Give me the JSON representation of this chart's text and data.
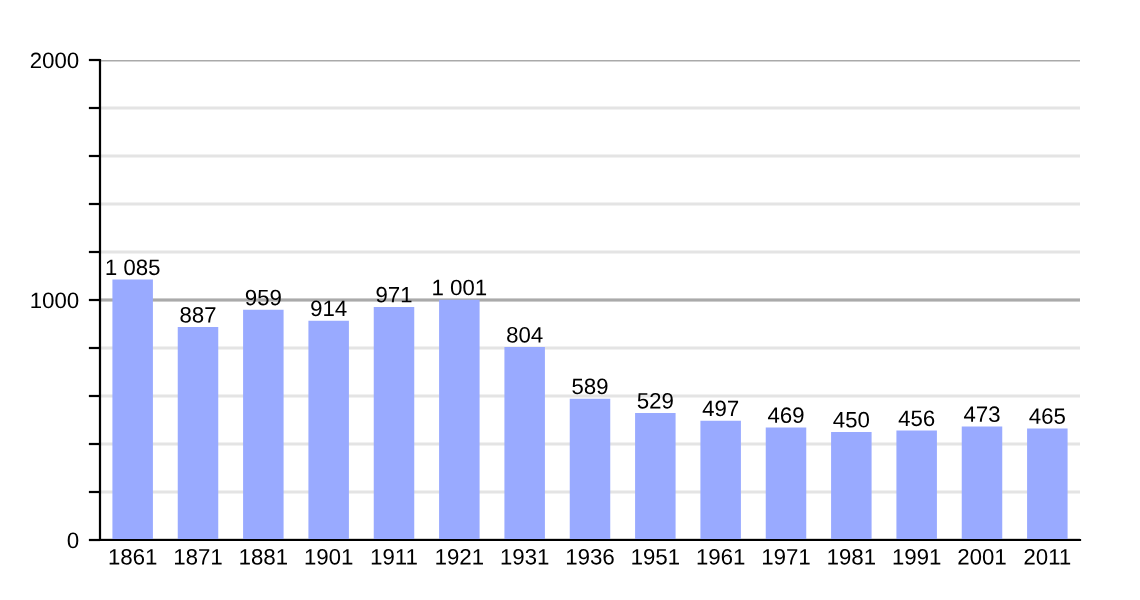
{
  "chart_data": {
    "type": "bar",
    "categories": [
      "1861",
      "1871",
      "1881",
      "1901",
      "1911",
      "1921",
      "1931",
      "1936",
      "1951",
      "1961",
      "1971",
      "1981",
      "1991",
      "2001",
      "2011"
    ],
    "values": [
      1085,
      887,
      959,
      914,
      971,
      1001,
      804,
      589,
      529,
      497,
      469,
      450,
      456,
      473,
      465
    ],
    "value_labels": [
      "1 085",
      "887",
      "959",
      "914",
      "971",
      "1 001",
      "804",
      "589",
      "529",
      "497",
      "469",
      "450",
      "456",
      "473",
      "465"
    ],
    "color": "#99aaff",
    "ylim": [
      0,
      2000
    ],
    "yticks": [
      0,
      {
        "value": 200,
        "label": null
      },
      {
        "value": 400,
        "label": null
      },
      {
        "value": 600,
        "label": null
      },
      {
        "value": 800,
        "label": null
      },
      1000,
      {
        "value": 1200,
        "label": null
      },
      {
        "value": 1400,
        "label": null
      },
      {
        "value": 1600,
        "label": null
      },
      {
        "value": 1800,
        "label": null
      },
      2000
    ],
    "ref_lines": [
      {
        "axis": "y",
        "value": 1000,
        "label": null,
        "color": "#aaaaaa"
      }
    ],
    "grid": "y"
  }
}
